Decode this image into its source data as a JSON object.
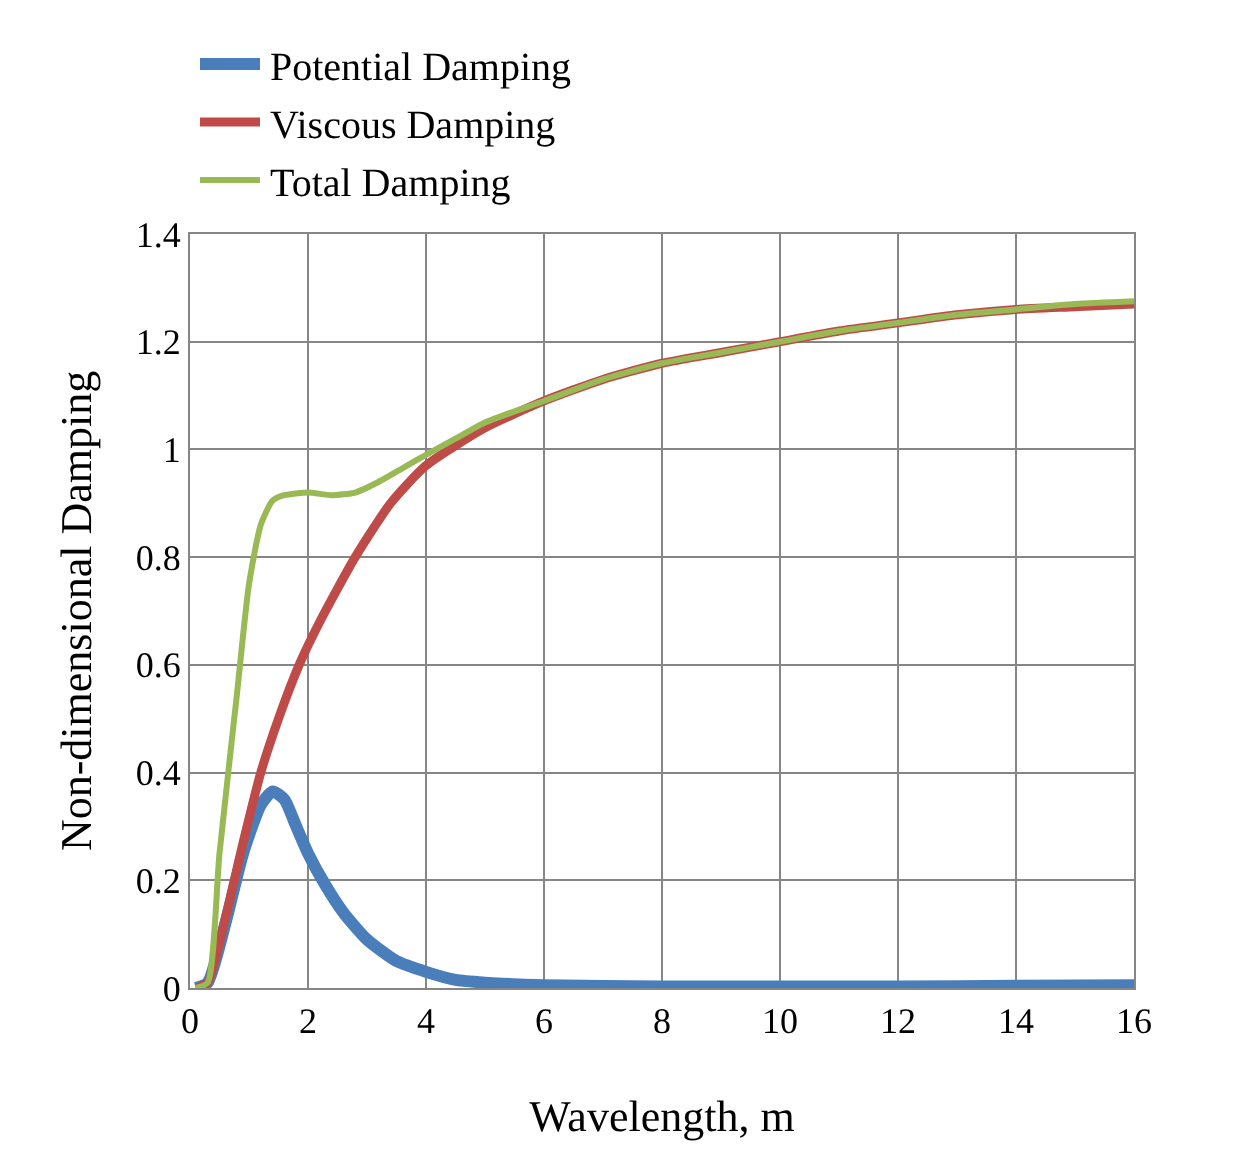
{
  "chart_data": {
    "type": "line",
    "xlabel": "Wavelength, m",
    "ylabel": "Non-dimensional Damping",
    "xlim": [
      0,
      16
    ],
    "xticks": [
      0,
      2,
      4,
      6,
      8,
      10,
      12,
      14,
      16
    ],
    "ylim": [
      0,
      1.4
    ],
    "yticks": [
      0,
      0.2,
      0.4,
      0.6,
      0.8,
      1,
      1.2,
      1.4
    ],
    "grid": true,
    "legend": "top",
    "marker": "none",
    "line_style": "solid",
    "series": [
      {
        "name": "Potential Damping",
        "color": "#4a7ebb",
        "x": [
          0.1,
          0.3,
          0.6,
          0.9,
          1.2,
          1.4,
          1.6,
          1.8,
          2.0,
          2.3,
          2.6,
          3.0,
          3.5,
          4.0,
          4.5,
          5,
          6,
          8,
          10,
          12,
          14,
          16
        ],
        "values": [
          0,
          0.01,
          0.12,
          0.25,
          0.34,
          0.365,
          0.35,
          0.3,
          0.25,
          0.19,
          0.14,
          0.09,
          0.05,
          0.03,
          0.015,
          0.01,
          0.005,
          0.003,
          0.003,
          0.003,
          0.004,
          0.005
        ]
      },
      {
        "name": "Viscous Damping",
        "color": "#be4b48",
        "x": [
          0.1,
          0.3,
          0.6,
          0.9,
          1.2,
          1.5,
          1.85,
          2.2,
          2.8,
          3.4,
          4,
          5,
          6,
          7,
          8,
          9,
          10,
          11,
          12,
          13,
          14,
          15,
          16
        ],
        "values": [
          0,
          0.01,
          0.13,
          0.27,
          0.4,
          0.5,
          0.6,
          0.68,
          0.8,
          0.9,
          0.97,
          1.04,
          1.09,
          1.13,
          1.16,
          1.18,
          1.2,
          1.22,
          1.235,
          1.25,
          1.26,
          1.265,
          1.27
        ]
      },
      {
        "name": "Total Damping",
        "color": "#98b954",
        "x": [
          0.1,
          0.3,
          0.5,
          0.8,
          1.0,
          1.2,
          1.4,
          1.6,
          2.0,
          2.4,
          2.8,
          3.2,
          3.6,
          4.0,
          4.5,
          5,
          6,
          7,
          8,
          9,
          10,
          11,
          12,
          13,
          14,
          15,
          16
        ],
        "values": [
          0,
          0.01,
          0.25,
          0.55,
          0.75,
          0.86,
          0.905,
          0.915,
          0.92,
          0.915,
          0.92,
          0.94,
          0.965,
          0.99,
          1.02,
          1.05,
          1.09,
          1.13,
          1.16,
          1.18,
          1.2,
          1.22,
          1.235,
          1.25,
          1.26,
          1.27,
          1.275
        ]
      }
    ]
  }
}
